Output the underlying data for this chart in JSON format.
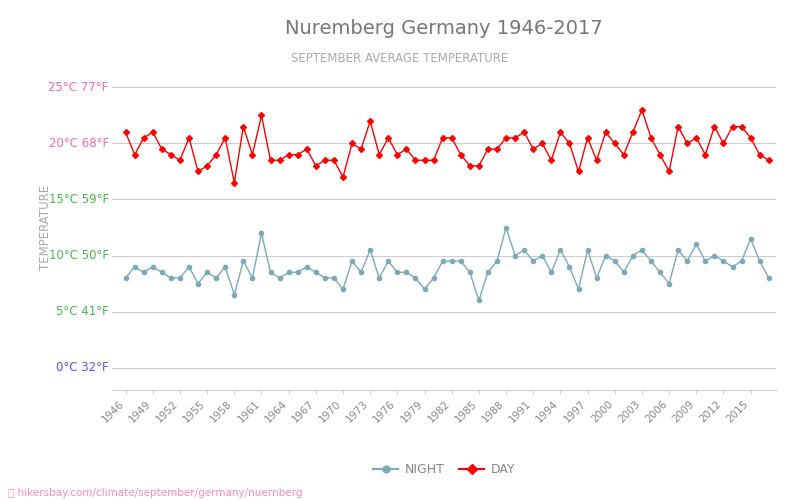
{
  "title": "Nuremberg Germany 1946-2017",
  "subtitle": "SEPTEMBER AVERAGE TEMPERATURE",
  "ylabel": "TEMPERATURE",
  "watermark": "hikersbay.com/climate/september/germany/nuernberg",
  "years": [
    1946,
    1947,
    1948,
    1949,
    1950,
    1951,
    1952,
    1953,
    1954,
    1955,
    1956,
    1957,
    1958,
    1959,
    1960,
    1961,
    1962,
    1963,
    1964,
    1965,
    1966,
    1967,
    1968,
    1969,
    1970,
    1971,
    1972,
    1973,
    1974,
    1975,
    1976,
    1977,
    1978,
    1979,
    1980,
    1981,
    1982,
    1983,
    1984,
    1985,
    1986,
    1987,
    1988,
    1989,
    1990,
    1991,
    1992,
    1993,
    1994,
    1995,
    1996,
    1997,
    1998,
    1999,
    2000,
    2001,
    2002,
    2003,
    2004,
    2005,
    2006,
    2007,
    2008,
    2009,
    2010,
    2011,
    2012,
    2013,
    2014,
    2015,
    2016,
    2017
  ],
  "day_temps": [
    21.0,
    19.0,
    20.5,
    21.0,
    19.5,
    19.0,
    18.5,
    20.5,
    17.5,
    18.0,
    19.0,
    20.5,
    16.5,
    21.5,
    19.0,
    22.5,
    18.5,
    18.5,
    19.0,
    19.0,
    19.5,
    18.0,
    18.5,
    18.5,
    17.0,
    20.0,
    19.5,
    22.0,
    19.0,
    20.5,
    19.0,
    19.5,
    18.5,
    18.5,
    18.5,
    20.5,
    20.5,
    19.0,
    18.0,
    18.0,
    19.5,
    19.5,
    20.5,
    20.5,
    21.0,
    19.5,
    20.0,
    18.5,
    21.0,
    20.0,
    17.5,
    20.5,
    18.5,
    21.0,
    20.0,
    19.0,
    21.0,
    23.0,
    20.5,
    19.0,
    17.5,
    21.5,
    20.0,
    20.5,
    19.0,
    21.5,
    20.0,
    21.5,
    21.5,
    20.5,
    19.0,
    18.5
  ],
  "night_temps": [
    8.0,
    9.0,
    8.5,
    9.0,
    8.5,
    8.0,
    8.0,
    9.0,
    7.5,
    8.5,
    8.0,
    9.0,
    6.5,
    9.5,
    8.0,
    12.0,
    8.5,
    8.0,
    8.5,
    8.5,
    9.0,
    8.5,
    8.0,
    8.0,
    7.0,
    9.5,
    8.5,
    10.5,
    8.0,
    9.5,
    8.5,
    8.5,
    8.0,
    7.0,
    8.0,
    9.5,
    9.5,
    9.5,
    8.5,
    6.0,
    8.5,
    9.5,
    12.5,
    10.0,
    10.5,
    9.5,
    10.0,
    8.5,
    10.5,
    9.0,
    7.0,
    10.5,
    8.0,
    10.0,
    9.5,
    8.5,
    10.0,
    10.5,
    9.5,
    8.5,
    7.5,
    10.5,
    9.5,
    11.0,
    9.5,
    10.0,
    9.5,
    9.0,
    9.5,
    11.5,
    9.5,
    8.0
  ],
  "day_color": "#ff0000",
  "night_color": "#7aaaba",
  "title_color": "#777777",
  "subtitle_color": "#aaaaaa",
  "ylabel_color": "#aaaaaa",
  "grid_color": "#cccccc",
  "background_color": "#ffffff",
  "yticks_c": [
    0,
    5,
    10,
    15,
    20,
    25
  ],
  "yticks_f": [
    32,
    41,
    50,
    59,
    68,
    77
  ],
  "ytick_colors": [
    "#5555ff",
    "#44bb44",
    "#44bb44",
    "#44bb44",
    "#ff66aa",
    "#ff66aa"
  ],
  "ylim": [
    -2,
    27
  ],
  "xlim": [
    1944.5,
    2017.8
  ],
  "xtick_years": [
    1946,
    1949,
    1952,
    1955,
    1958,
    1961,
    1964,
    1967,
    1970,
    1973,
    1976,
    1979,
    1982,
    1985,
    1988,
    1991,
    1994,
    1997,
    2000,
    2003,
    2006,
    2009,
    2012,
    2015
  ]
}
